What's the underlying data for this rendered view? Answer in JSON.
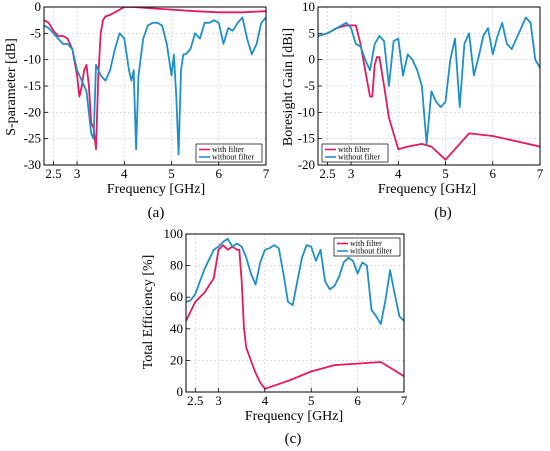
{
  "figure": {
    "captions": [
      "(a)",
      "(b)",
      "(c)"
    ]
  },
  "chart_data": [
    {
      "type": "line",
      "caption": "(a)",
      "xlabel": "Frequency [GHz]",
      "ylabel": "S-parameter [dB]",
      "xlim": [
        2.3,
        7
      ],
      "ylim": [
        -30,
        0
      ],
      "xticks": [
        {
          "value": 2.5,
          "label": "2.5"
        },
        {
          "value": 3,
          "label": "3"
        },
        {
          "value": 4,
          "label": "4"
        },
        {
          "value": 5,
          "label": "5"
        },
        {
          "value": 6,
          "label": "6"
        },
        {
          "value": 7,
          "label": "7"
        }
      ],
      "yticks": [
        {
          "value": 0,
          "label": "0"
        },
        {
          "value": -5,
          "label": "-5"
        },
        {
          "value": -10,
          "label": "-10"
        },
        {
          "value": -15,
          "label": "-15"
        },
        {
          "value": -20,
          "label": "-20"
        },
        {
          "value": -25,
          "label": "-25"
        },
        {
          "value": -30,
          "label": "-30"
        }
      ],
      "grid": true,
      "legend_position": "bottom-right",
      "series": [
        {
          "name": "with filter",
          "color": "#e8195a",
          "x": [
            2.3,
            2.4,
            2.5,
            2.6,
            2.7,
            2.8,
            2.9,
            3.0,
            3.05,
            3.1,
            3.15,
            3.2,
            3.25,
            3.3,
            3.35,
            3.4,
            3.45,
            3.5,
            3.55,
            3.6,
            3.7,
            3.8,
            3.9,
            4.0,
            4.2,
            4.5,
            5.0,
            5.5,
            6.0,
            6.5,
            7.0
          ],
          "y": [
            -2.5,
            -3,
            -4.5,
            -5.5,
            -5.5,
            -6,
            -8,
            -13,
            -17,
            -15,
            -12,
            -11,
            -15,
            -22,
            -23,
            -27,
            -13,
            -5,
            -2.5,
            -1.8,
            -1.5,
            -1,
            -0.5,
            0,
            0,
            -0.2,
            -0.5,
            -0.8,
            -1,
            -1,
            -0.8
          ]
        },
        {
          "name": "without filter",
          "color": "#1e90c8",
          "x": [
            2.3,
            2.4,
            2.5,
            2.6,
            2.7,
            2.8,
            2.9,
            3.0,
            3.1,
            3.2,
            3.3,
            3.35,
            3.4,
            3.5,
            3.6,
            3.7,
            3.8,
            3.9,
            4.0,
            4.1,
            4.15,
            4.2,
            4.25,
            4.3,
            4.4,
            4.5,
            4.6,
            4.7,
            4.8,
            4.9,
            5.0,
            5.05,
            5.1,
            5.15,
            5.2,
            5.25,
            5.3,
            5.4,
            5.5,
            5.6,
            5.7,
            5.8,
            5.9,
            6.0,
            6.1,
            6.2,
            6.3,
            6.4,
            6.5,
            6.6,
            6.7,
            6.8,
            6.9,
            7.0
          ],
          "y": [
            -3.5,
            -4,
            -5,
            -6,
            -7,
            -7,
            -8,
            -12,
            -14,
            -16,
            -24,
            -25,
            -11,
            -13,
            -14,
            -12,
            -8,
            -5,
            -6,
            -12,
            -14,
            -12,
            -27,
            -13,
            -6,
            -3.5,
            -3,
            -3,
            -3.5,
            -7,
            -13,
            -9,
            -17,
            -28,
            -12,
            -9,
            -9,
            -8,
            -5,
            -6,
            -3,
            -3,
            -2.5,
            -3,
            -7,
            -4,
            -4.5,
            -3,
            -2,
            -6,
            -9,
            -7,
            -3,
            -2
          ]
        }
      ]
    },
    {
      "type": "line",
      "caption": "(b)",
      "xlabel": "Frequency [GHz]",
      "ylabel": "Boresight Gain [dBi]",
      "xlim": [
        2.3,
        7
      ],
      "ylim": [
        -20,
        10
      ],
      "xticks": [
        {
          "value": 2.5,
          "label": "2.5"
        },
        {
          "value": 3,
          "label": "3"
        },
        {
          "value": 4,
          "label": "4"
        },
        {
          "value": 5,
          "label": "5"
        },
        {
          "value": 6,
          "label": "6"
        },
        {
          "value": 7,
          "label": "7"
        }
      ],
      "yticks": [
        {
          "value": 10,
          "label": "10"
        },
        {
          "value": 5,
          "label": "5"
        },
        {
          "value": 0,
          "label": "0"
        },
        {
          "value": -5,
          "label": "-5"
        },
        {
          "value": -10,
          "label": "-10"
        },
        {
          "value": -15,
          "label": "-15"
        },
        {
          "value": -20,
          "label": "-20"
        }
      ],
      "grid": true,
      "legend_position": "bottom-left",
      "series": [
        {
          "name": "with filter",
          "color": "#e8195a",
          "x": [
            2.3,
            2.5,
            2.7,
            2.9,
            3.0,
            3.1,
            3.2,
            3.3,
            3.4,
            3.45,
            3.5,
            3.55,
            3.6,
            3.7,
            3.8,
            4.0,
            4.2,
            4.5,
            4.7,
            5.0,
            5.2,
            5.5,
            6.0,
            6.5,
            7.0
          ],
          "y": [
            4.5,
            5,
            6,
            6.5,
            6.5,
            6.5,
            3,
            -2,
            -7,
            -7,
            -1,
            0.5,
            0.5,
            -5,
            -11,
            -17,
            -16.5,
            -16,
            -16.5,
            -19,
            -17,
            -14,
            -14.5,
            -15.5,
            -16.5
          ]
        },
        {
          "name": "without filter",
          "color": "#1e90c8",
          "x": [
            2.3,
            2.5,
            2.7,
            2.9,
            3.0,
            3.1,
            3.2,
            3.3,
            3.4,
            3.5,
            3.6,
            3.7,
            3.8,
            3.9,
            4.0,
            4.1,
            4.2,
            4.3,
            4.4,
            4.5,
            4.6,
            4.7,
            4.8,
            4.9,
            5.0,
            5.1,
            5.2,
            5.3,
            5.4,
            5.5,
            5.6,
            5.7,
            5.8,
            5.9,
            6.0,
            6.1,
            6.2,
            6.3,
            6.4,
            6.5,
            6.6,
            6.7,
            6.8,
            6.9,
            7.0
          ],
          "y": [
            4.5,
            5,
            6,
            7,
            6,
            3,
            2.5,
            0,
            -2,
            3,
            4.5,
            3.5,
            -5,
            3.5,
            4,
            -3,
            1,
            0,
            -2,
            -5,
            -16,
            -6,
            -8,
            -9,
            -8,
            0,
            4,
            -9,
            3,
            5,
            -3,
            0.5,
            4.5,
            6,
            1,
            4.5,
            7,
            3,
            2,
            4,
            6,
            8,
            7,
            0,
            -1.5
          ]
        }
      ]
    },
    {
      "type": "line",
      "caption": "(c)",
      "xlabel": "Frequency [GHz]",
      "ylabel": "Total Efficiency [%]",
      "xlim": [
        2.3,
        7
      ],
      "ylim": [
        0,
        100
      ],
      "xticks": [
        {
          "value": 2.5,
          "label": "2.5"
        },
        {
          "value": 3,
          "label": "3"
        },
        {
          "value": 4,
          "label": "4"
        },
        {
          "value": 5,
          "label": "5"
        },
        {
          "value": 6,
          "label": "6"
        },
        {
          "value": 7,
          "label": "7"
        }
      ],
      "yticks": [
        {
          "value": 100,
          "label": "100"
        },
        {
          "value": 80,
          "label": "80"
        },
        {
          "value": 60,
          "label": "60"
        },
        {
          "value": 40,
          "label": "40"
        },
        {
          "value": 20,
          "label": "20"
        },
        {
          "value": 0,
          "label": "0"
        }
      ],
      "grid": true,
      "legend_position": "top-right",
      "series": [
        {
          "name": "with filter",
          "color": "#e8195a",
          "x": [
            2.3,
            2.5,
            2.7,
            2.9,
            3.0,
            3.1,
            3.2,
            3.3,
            3.4,
            3.45,
            3.5,
            3.55,
            3.6,
            3.7,
            3.8,
            3.9,
            4.0,
            4.5,
            5.0,
            5.5,
            6.0,
            6.5,
            7.0
          ],
          "y": [
            45,
            57,
            63,
            72,
            90,
            93,
            90,
            92,
            90,
            90,
            70,
            40,
            28,
            20,
            12,
            6,
            2,
            7,
            13,
            17,
            18,
            19,
            10
          ]
        },
        {
          "name": "without filter",
          "color": "#1e90c8",
          "x": [
            2.3,
            2.4,
            2.5,
            2.6,
            2.7,
            2.8,
            2.9,
            3.0,
            3.1,
            3.2,
            3.3,
            3.4,
            3.5,
            3.6,
            3.7,
            3.8,
            3.9,
            4.0,
            4.1,
            4.2,
            4.3,
            4.4,
            4.5,
            4.6,
            4.7,
            4.8,
            4.9,
            5.0,
            5.1,
            5.2,
            5.3,
            5.4,
            5.5,
            5.6,
            5.7,
            5.8,
            5.9,
            6.0,
            6.1,
            6.2,
            6.3,
            6.4,
            6.5,
            6.6,
            6.7,
            6.8,
            6.9,
            7.0
          ],
          "y": [
            57,
            58,
            62,
            70,
            78,
            84,
            90,
            92,
            95,
            97,
            92,
            94,
            92,
            85,
            75,
            68,
            82,
            90,
            91,
            93,
            91,
            75,
            57,
            55,
            70,
            85,
            93,
            92,
            83,
            90,
            70,
            65,
            67,
            73,
            82,
            85,
            83,
            75,
            82,
            80,
            52,
            48,
            43,
            58,
            77,
            62,
            48,
            45
          ]
        }
      ]
    }
  ]
}
